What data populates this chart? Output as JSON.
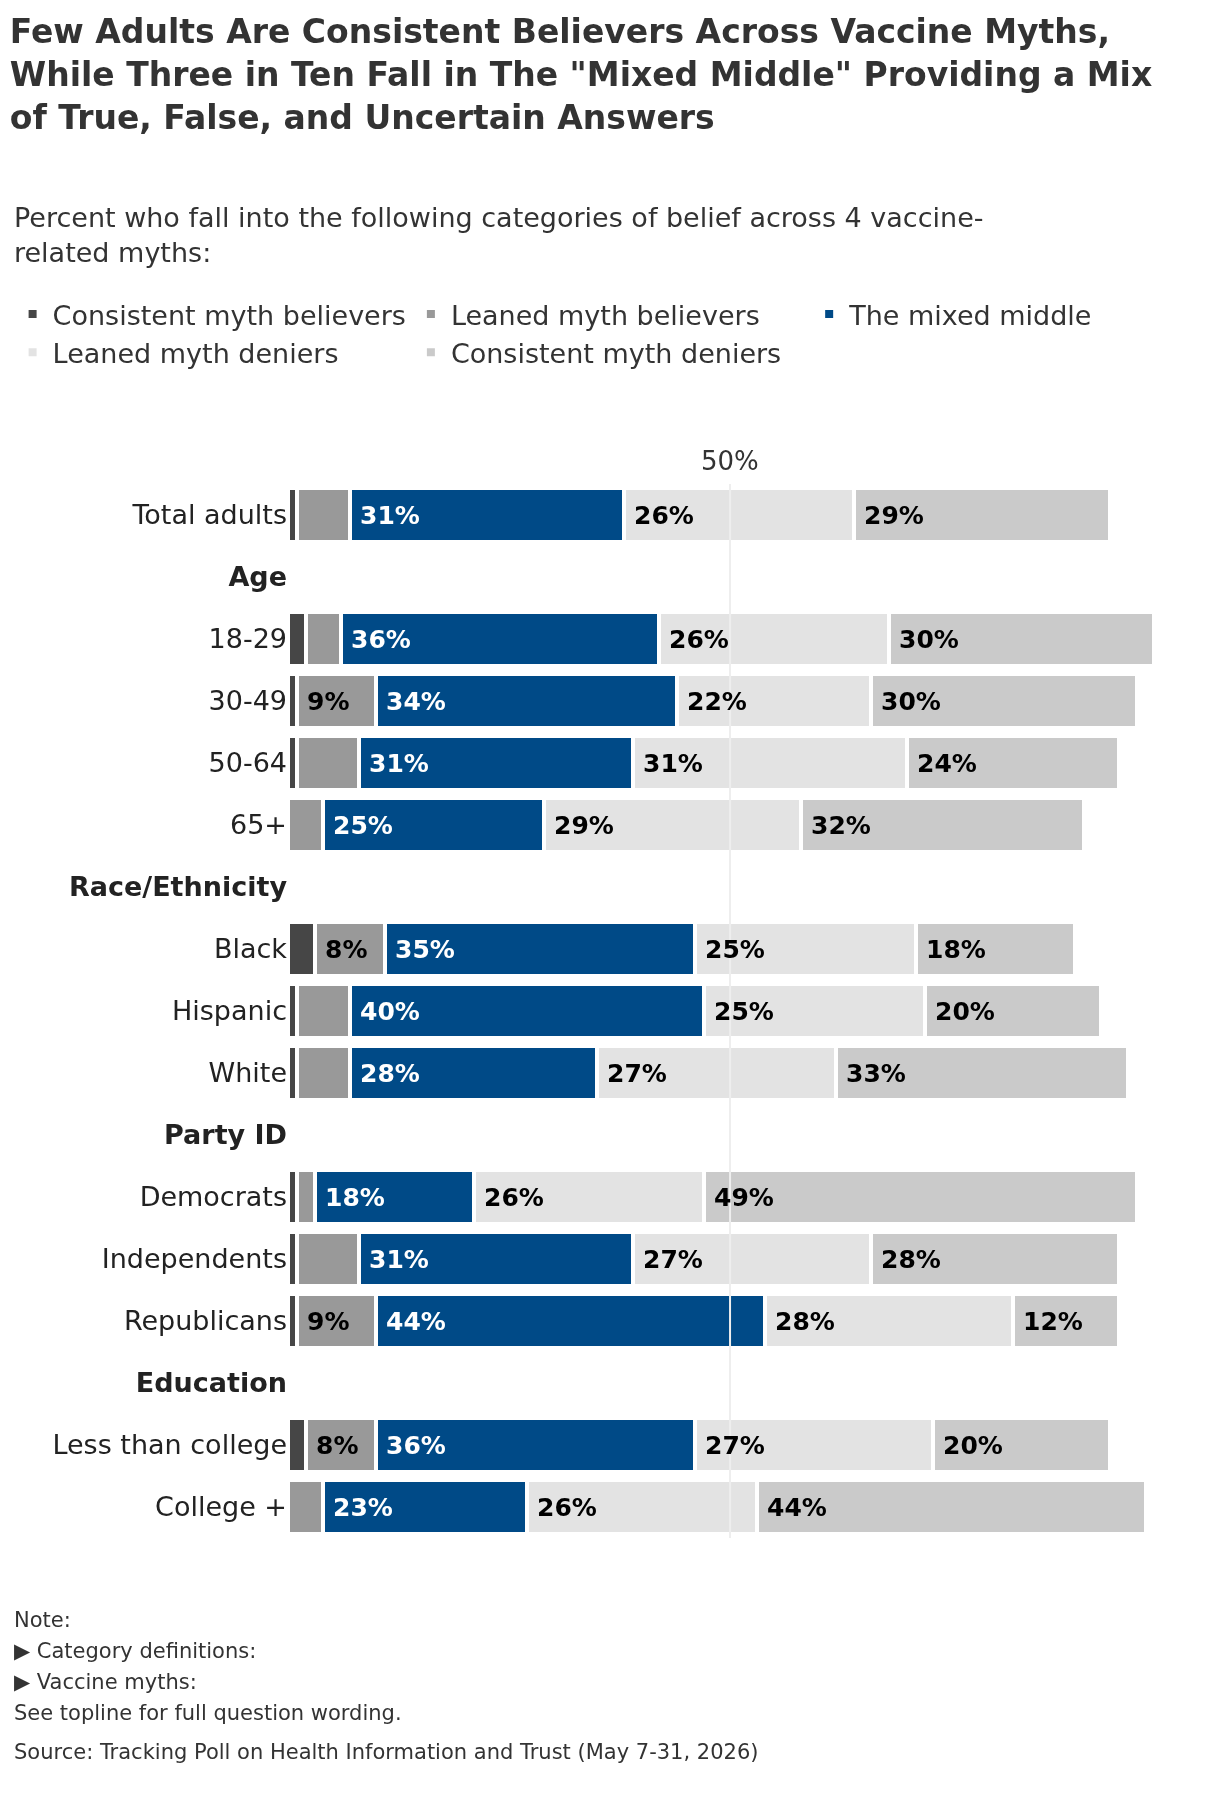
{
  "chart_data": {
    "type": "bar",
    "orientation": "horizontal",
    "stacked": true,
    "title": "Few Adults Are Consistent Believers Across Vaccine Myths, While Three in Ten Fall in The \"Mixed Middle\" Providing a Mix of True, False, and Uncertain Answers",
    "subtitle": "Percent who fall into the following categories of belief across 4 vaccine-related myths:",
    "categories": [
      "Total adults",
      "Age",
      "18-29",
      "30-49",
      "50-64",
      "65+",
      "Race/Ethnicity",
      "Black",
      "Hispanic",
      "White",
      "Party ID",
      "Democrats",
      "Independents",
      "Republicans",
      "Education",
      "Less than college",
      "College +"
    ],
    "series": [
      {
        "name": "Consistent myth believers",
        "color": "#464646",
        "values": [
          1,
          null,
          2,
          1,
          1,
          0,
          null,
          3,
          1,
          1,
          null,
          1,
          1,
          1,
          null,
          2,
          0
        ],
        "value_labels": [
          null,
          null,
          null,
          null,
          null,
          null,
          null,
          null,
          null,
          null,
          null,
          null,
          null,
          null,
          null,
          null,
          null
        ]
      },
      {
        "name": "Leaned myth believers",
        "color": "#999999",
        "values": [
          6,
          null,
          4,
          9,
          7,
          4,
          null,
          8,
          6,
          6,
          null,
          2,
          7,
          9,
          null,
          8,
          4
        ],
        "value_labels": [
          null,
          null,
          null,
          "9%",
          null,
          null,
          null,
          "8%",
          null,
          null,
          null,
          null,
          null,
          "9%",
          null,
          "8%",
          null
        ]
      },
      {
        "name": "The mixed middle",
        "color": "#004a87",
        "values": [
          31,
          null,
          36,
          34,
          31,
          25,
          null,
          35,
          40,
          28,
          null,
          18,
          31,
          44,
          null,
          36,
          23
        ],
        "value_labels": [
          "31%",
          null,
          "36%",
          "34%",
          "31%",
          "25%",
          null,
          "35%",
          "40%",
          "28%",
          null,
          "18%",
          "31%",
          "44%",
          null,
          "36%",
          "23%"
        ]
      },
      {
        "name": "Leaned myth deniers",
        "color": "#e3e3e3",
        "values": [
          26,
          null,
          26,
          22,
          31,
          29,
          null,
          25,
          25,
          27,
          null,
          26,
          27,
          28,
          null,
          27,
          26
        ],
        "value_labels": [
          "26%",
          null,
          "26%",
          "22%",
          "31%",
          "29%",
          null,
          "25%",
          "25%",
          "27%",
          null,
          "26%",
          "27%",
          "28%",
          null,
          "27%",
          "26%"
        ]
      },
      {
        "name": "Consistent myth deniers",
        "color": "#cacaca",
        "values": [
          29,
          null,
          30,
          30,
          24,
          32,
          null,
          18,
          20,
          33,
          null,
          49,
          28,
          12,
          null,
          20,
          44
        ],
        "value_labels": [
          "29%",
          null,
          "30%",
          "30%",
          "24%",
          "32%",
          null,
          "18%",
          "20%",
          "33%",
          null,
          "49%",
          "28%",
          "12%",
          null,
          "20%",
          "44%"
        ]
      }
    ],
    "ref_lines": [
      {
        "axis": "x",
        "value": 50,
        "label": "50%",
        "color": "#eeeeee"
      }
    ],
    "legend": "top",
    "annotations": [
      "Note:",
      "▶ Category definitions:",
      "▶ Vaccine myths:",
      "See topline for full question wording.",
      "Source: Tracking Poll on Health Information and Trust (May 7-31, 2026)"
    ]
  }
}
